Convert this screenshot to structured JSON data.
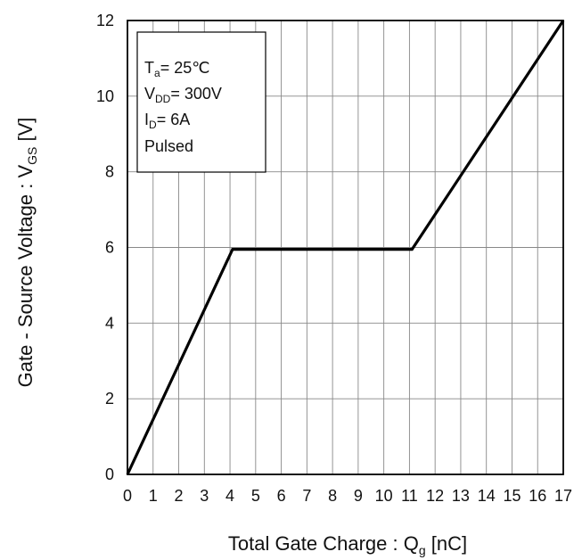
{
  "chart_data": {
    "type": "line",
    "title": "",
    "xlabel": {
      "main": "Total Gate Charge : Q",
      "sub": "g",
      "unit": " [nC]"
    },
    "ylabel": {
      "main": "Gate - Source Voltage : V",
      "sub": "GS",
      "unit": " [V]"
    },
    "xlim": [
      0,
      17
    ],
    "ylim": [
      0,
      12
    ],
    "xticks": [
      "0",
      "1",
      "2",
      "3",
      "4",
      "5",
      "6",
      "7",
      "8",
      "9",
      "10",
      "11",
      "12",
      "13",
      "14",
      "15",
      "16",
      "17"
    ],
    "yticks": [
      "0",
      "2",
      "4",
      "6",
      "8",
      "10",
      "12"
    ],
    "grid": true,
    "legend_placement": "top-left",
    "series": [
      {
        "x": [
          0,
          4.1,
          11.1,
          17
        ],
        "y": [
          0,
          5.95,
          5.95,
          12
        ]
      }
    ],
    "conditions": {
      "ta": {
        "main": "T",
        "sub": "a",
        "rest": "= 25℃"
      },
      "vdd": {
        "main": "V",
        "sub": "DD",
        "rest": "= 300V"
      },
      "id": {
        "main": "I",
        "sub": "D",
        "rest": "= 6A"
      },
      "mode": "Pulsed"
    },
    "colors": {
      "line": "#000000",
      "grid": "#888888",
      "frame": "#000000"
    }
  }
}
